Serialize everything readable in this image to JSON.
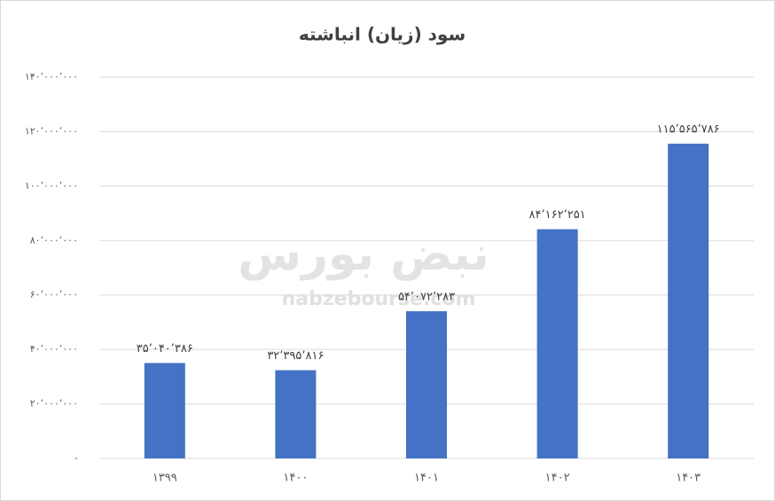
{
  "chart_data": {
    "type": "bar",
    "title": "سود (زیان) انباشته",
    "categories": [
      "۱۳۹۹",
      "۱۴۰۰",
      "۱۴۰۱",
      "۱۴۰۲",
      "۱۴۰۳"
    ],
    "values": [
      35040386,
      32395816,
      54072283,
      84162251,
      115565786
    ],
    "value_labels": [
      "۳۵٬۰۴۰٬۳۸۶",
      "۳۲٬۳۹۵٬۸۱۶",
      "۵۴٬۰۷۲٬۲۸۳",
      "۸۴٬۱۶۲٬۲۵۱",
      "۱۱۵٬۵۶۵٬۷۸۶"
    ],
    "color": "#4472c4",
    "ylim": [
      0,
      140000000
    ],
    "yticks": [
      {
        "value": 0,
        "label": "-"
      },
      {
        "value": 20000000,
        "label": "۲۰٬۰۰۰٬۰۰۰"
      },
      {
        "value": 40000000,
        "label": "۴۰٬۰۰۰٬۰۰۰"
      },
      {
        "value": 60000000,
        "label": "۶۰٬۰۰۰٬۰۰۰"
      },
      {
        "value": 80000000,
        "label": "۸۰٬۰۰۰٬۰۰۰"
      },
      {
        "value": 100000000,
        "label": "۱۰۰٬۰۰۰٬۰۰۰"
      },
      {
        "value": 120000000,
        "label": "۱۲۰٬۰۰۰٬۰۰۰"
      },
      {
        "value": 140000000,
        "label": "۱۴۰٬۰۰۰٬۰۰۰"
      }
    ],
    "grid": true,
    "annotations": [
      "نبض بورس",
      "nabzebourse.com"
    ]
  }
}
